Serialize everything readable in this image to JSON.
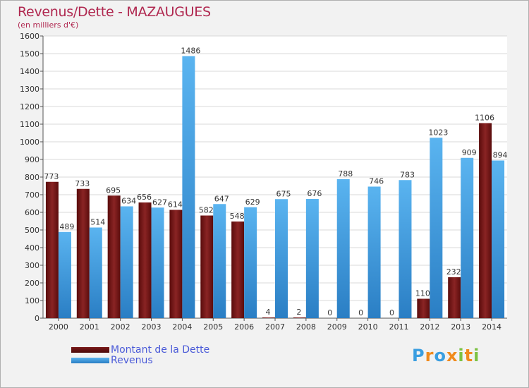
{
  "title": "Revenus/Dette - MAZAUGUES",
  "subtitle": "(en milliers d'€)",
  "chart_data": {
    "type": "bar",
    "categories": [
      "2000",
      "2001",
      "2002",
      "2003",
      "2004",
      "2005",
      "2006",
      "2007",
      "2008",
      "2009",
      "2010",
      "2011",
      "2012",
      "2013",
      "2014"
    ],
    "series": [
      {
        "name": "Montant de la Dette",
        "color": "#7a1a1a",
        "values": [
          773,
          733,
          695,
          656,
          614,
          582,
          548,
          4,
          2,
          0,
          0,
          0,
          110,
          232,
          1106
        ]
      },
      {
        "name": "Revenus",
        "color": "#3a9ee0",
        "values": [
          489,
          514,
          634,
          627,
          1486,
          647,
          629,
          675,
          676,
          788,
          746,
          783,
          1023,
          909,
          894
        ]
      }
    ],
    "ylim": [
      0,
      1600
    ],
    "yticks": [
      0,
      100,
      200,
      300,
      400,
      500,
      600,
      700,
      800,
      900,
      1000,
      1100,
      1200,
      1300,
      1400,
      1500,
      1600
    ],
    "grid": true,
    "legend_position": "bottom-left"
  },
  "legend": {
    "items": [
      {
        "label": "Montant de la Dette",
        "color": "#7a1a1a"
      },
      {
        "label": "Revenus",
        "color": "#3a9ee0"
      }
    ]
  },
  "logo": {
    "letters": [
      "P",
      "r",
      "o",
      "x",
      "i",
      "t",
      "i"
    ],
    "colors": [
      "#3a9ee0",
      "#f08a1c",
      "#3a9ee0",
      "#f08a1c",
      "#7cc242",
      "#f08a1c",
      "#7cc242"
    ]
  }
}
